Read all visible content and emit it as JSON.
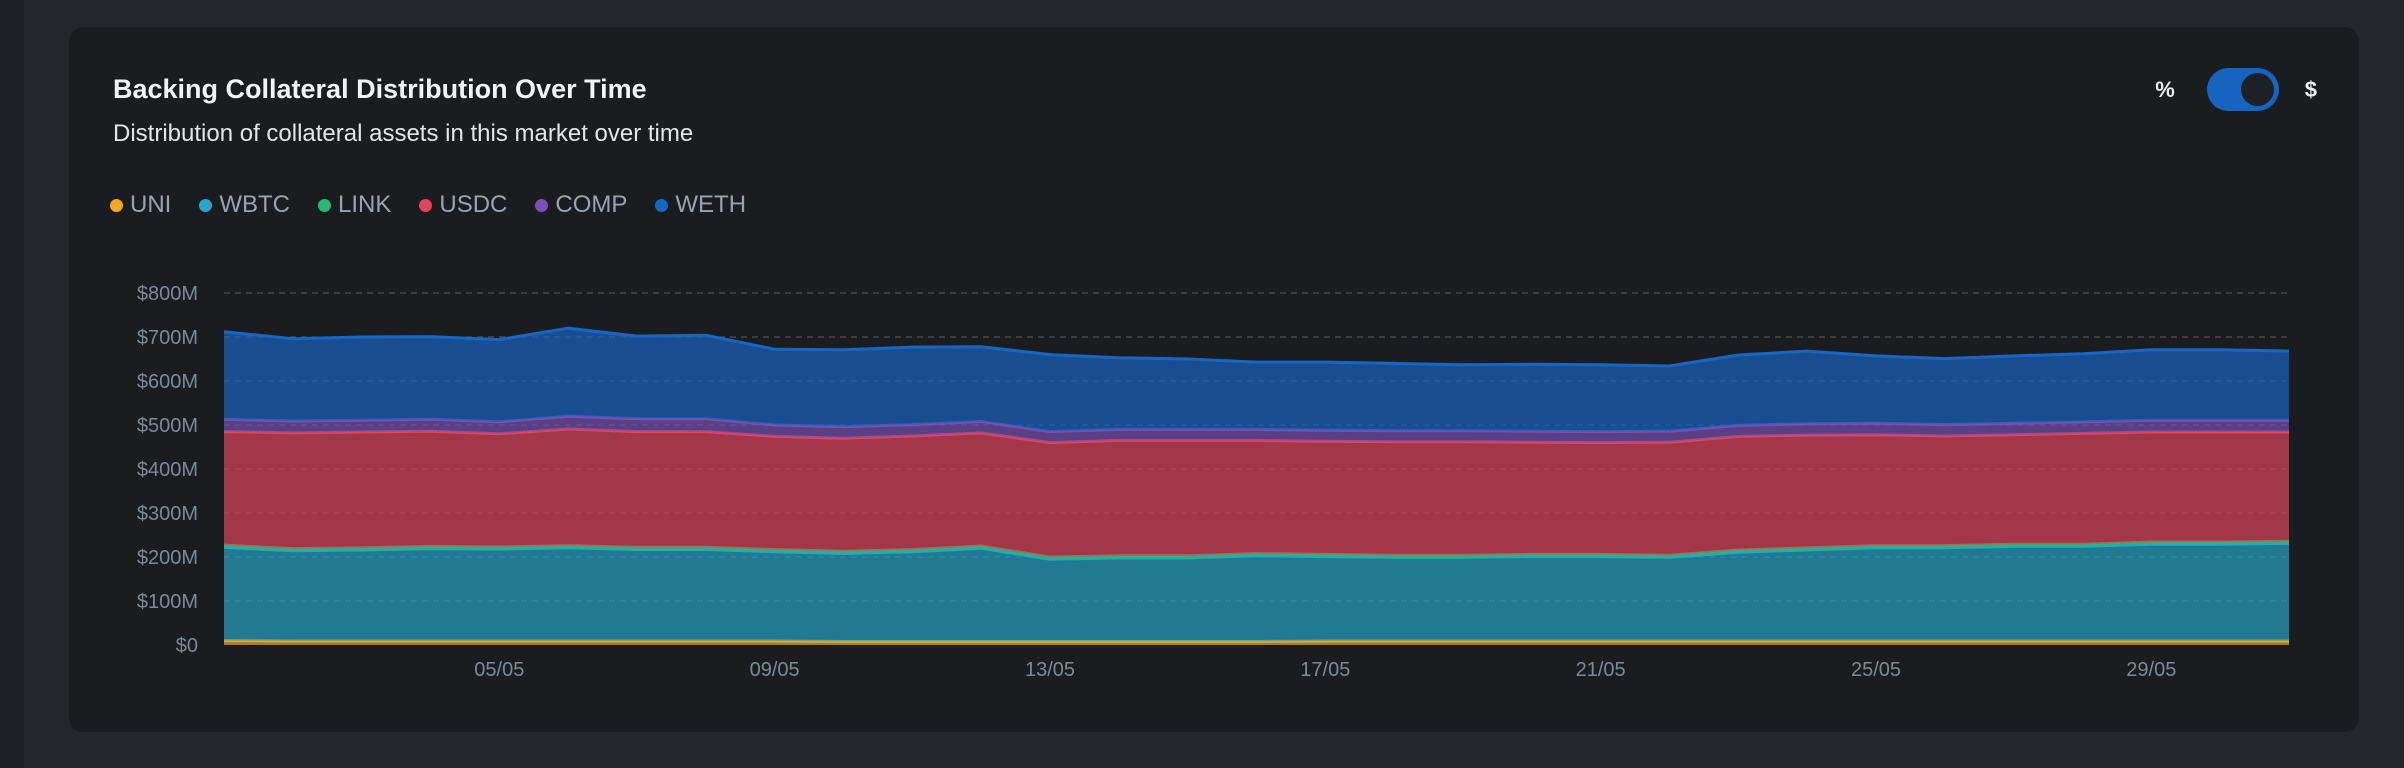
{
  "card": {
    "title": "Backing Collateral Distribution Over Time",
    "subtitle": "Distribution of collateral assets in this market over time"
  },
  "toggle": {
    "left_label": "%",
    "right_label": "$",
    "selected": "$"
  },
  "legend": [
    {
      "name": "UNI",
      "color": "#f5a623"
    },
    {
      "name": "WBTC",
      "color": "#26a6c9"
    },
    {
      "name": "LINK",
      "color": "#2bb673"
    },
    {
      "name": "USDC",
      "color": "#e2445c"
    },
    {
      "name": "COMP",
      "color": "#7b4fb3"
    },
    {
      "name": "WETH",
      "color": "#1766c4"
    }
  ],
  "chart_data": {
    "type": "area",
    "stacked": true,
    "grid": "horizontal dashed",
    "ylim": [
      0,
      800
    ],
    "y_ticks": [
      "$0",
      "$100M",
      "$200M",
      "$300M",
      "$400M",
      "$500M",
      "$600M",
      "$700M",
      "$800M"
    ],
    "x_ticks": [
      {
        "day": 5,
        "label": "05/05"
      },
      {
        "day": 9,
        "label": "09/05"
      },
      {
        "day": 13,
        "label": "13/05"
      },
      {
        "day": 17,
        "label": "17/05"
      },
      {
        "day": 21,
        "label": "21/05"
      },
      {
        "day": 25,
        "label": "25/05"
      },
      {
        "day": 29,
        "label": "29/05"
      }
    ],
    "x": [
      1,
      2,
      3,
      4,
      5,
      6,
      7,
      8,
      9,
      10,
      11,
      12,
      13,
      14,
      15,
      16,
      17,
      18,
      19,
      20,
      21,
      22,
      23,
      24,
      25,
      26,
      27,
      28,
      29,
      30,
      31
    ],
    "series": [
      {
        "name": "UNI",
        "color": "#f5a623",
        "values": [
          10,
          9,
          9,
          9,
          9,
          9,
          9,
          9,
          9,
          8,
          8,
          8,
          8,
          8,
          8,
          8,
          9,
          9,
          9,
          9,
          9,
          9,
          9,
          9,
          9,
          9,
          9,
          9,
          9,
          9,
          9
        ]
      },
      {
        "name": "WBTC",
        "color": "#26a6c9",
        "values": [
          212,
          205,
          207,
          210,
          209,
          212,
          208,
          208,
          203,
          200,
          204,
          212,
          187,
          190,
          190,
          195,
          192,
          190,
          190,
          192,
          192,
          190,
          202,
          207,
          212,
          212,
          215,
          215,
          220,
          220,
          222
        ]
      },
      {
        "name": "LINK",
        "color": "#2bb673",
        "values": [
          5,
          5,
          5,
          5,
          5,
          5,
          5,
          5,
          5,
          5,
          5,
          5,
          5,
          5,
          5,
          5,
          5,
          5,
          5,
          5,
          5,
          5,
          5,
          5,
          5,
          5,
          5,
          5,
          5,
          5,
          5
        ]
      },
      {
        "name": "USDC",
        "color": "#e2445c",
        "values": [
          258,
          263,
          263,
          262,
          257,
          265,
          263,
          263,
          257,
          257,
          258,
          257,
          260,
          262,
          262,
          257,
          257,
          258,
          258,
          255,
          254,
          257,
          258,
          256,
          252,
          249,
          249,
          252,
          250,
          250,
          248
        ]
      },
      {
        "name": "COMP",
        "color": "#7b4fb3",
        "values": [
          28,
          27,
          27,
          27,
          27,
          29,
          29,
          29,
          26,
          26,
          26,
          26,
          25,
          25,
          25,
          25,
          25,
          25,
          25,
          25,
          25,
          25,
          25,
          26,
          26,
          26,
          26,
          26,
          27,
          27,
          27
        ]
      },
      {
        "name": "WETH",
        "color": "#1766c4",
        "values": [
          199,
          187,
          189,
          188,
          187,
          200,
          188,
          190,
          172,
          175,
          176,
          170,
          175,
          163,
          160,
          153,
          155,
          153,
          150,
          152,
          152,
          148,
          160,
          165,
          153,
          150,
          153,
          155,
          160,
          160,
          157
        ]
      }
    ]
  }
}
